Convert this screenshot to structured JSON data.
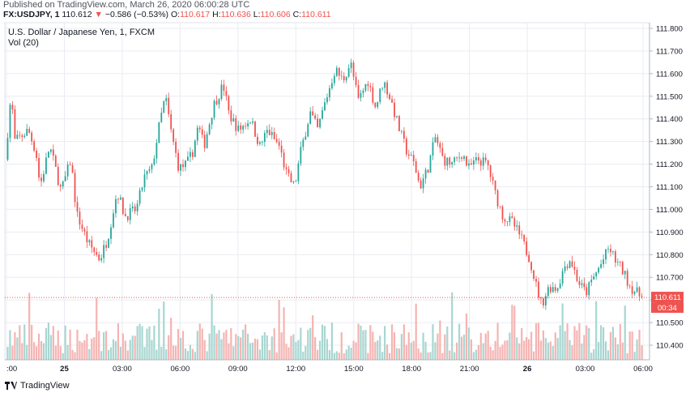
{
  "header": {
    "published": "Published on TradingView.com, March 26, 2020 06:00:28 UTC",
    "symbol": "FX:USDJPY, 1",
    "last": "110.612",
    "arrow": "▼",
    "change": "−0.586 (−0.53%)",
    "o_label": "O:",
    "o_value": "110.617",
    "h_label": "H:",
    "h_value": "110.636",
    "l_label": "L:",
    "l_value": "110.606",
    "c_label": "C:",
    "c_value": "110.611"
  },
  "legend": {
    "title": "U.S. Dollar / Japanese Yen, 1, FXCM",
    "volume": "Vol (20)"
  },
  "price_badge": {
    "price": "110.611",
    "countdown": "00:34"
  },
  "footer": {
    "brand": "TradingView"
  },
  "colors": {
    "up": "#26a69a",
    "down": "#ef5350",
    "grid": "#e9ecf2",
    "vol_up": "#a8d6d1",
    "vol_down": "#f4b4b2"
  },
  "chart_data": {
    "type": "candlestick",
    "title": "U.S. Dollar / Japanese Yen, 1, FXCM",
    "y_ticks": [
      "111.800",
      "111.700",
      "111.600",
      "111.500",
      "111.400",
      "111.300",
      "111.200",
      "111.100",
      "111.000",
      "110.900",
      "110.800",
      "110.700",
      "110.600",
      "110.500",
      "110.400"
    ],
    "ylim": [
      110.33,
      111.83
    ],
    "x_ticks": [
      {
        "label": ":00",
        "t": 0,
        "bold": false
      },
      {
        "label": "25",
        "t": 3,
        "bold": true
      },
      {
        "label": "03:00",
        "t": 6,
        "bold": false
      },
      {
        "label": "06:00",
        "t": 9,
        "bold": false
      },
      {
        "label": "09:00",
        "t": 12,
        "bold": false
      },
      {
        "label": "12:00",
        "t": 15,
        "bold": false
      },
      {
        "label": "15:00",
        "t": 18,
        "bold": false
      },
      {
        "label": "18:00",
        "t": 21,
        "bold": false
      },
      {
        "label": "21:00",
        "t": 24,
        "bold": false
      },
      {
        "label": "26",
        "t": 27,
        "bold": true
      },
      {
        "label": "03:00",
        "t": 30,
        "bold": false
      },
      {
        "label": "06:00",
        "t": 33,
        "bold": false
      }
    ],
    "x_range_hours": [
      0,
      33
    ],
    "last_price": 110.611,
    "price_path": [
      [
        0.0,
        111.22
      ],
      [
        0.3,
        111.51
      ],
      [
        0.5,
        111.3
      ],
      [
        1.2,
        111.35
      ],
      [
        1.6,
        111.25
      ],
      [
        1.8,
        111.1
      ],
      [
        2.3,
        111.28
      ],
      [
        2.9,
        111.08
      ],
      [
        3.4,
        111.22
      ],
      [
        3.7,
        110.98
      ],
      [
        4.3,
        110.85
      ],
      [
        4.9,
        110.78
      ],
      [
        5.3,
        110.87
      ],
      [
        5.8,
        111.08
      ],
      [
        6.2,
        110.97
      ],
      [
        6.8,
        111.0
      ],
      [
        7.2,
        111.14
      ],
      [
        7.6,
        111.18
      ],
      [
        8.0,
        111.38
      ],
      [
        8.3,
        111.5
      ],
      [
        8.6,
        111.34
      ],
      [
        9.0,
        111.18
      ],
      [
        9.4,
        111.2
      ],
      [
        9.7,
        111.25
      ],
      [
        10.0,
        111.37
      ],
      [
        10.3,
        111.28
      ],
      [
        10.8,
        111.46
      ],
      [
        11.3,
        111.55
      ],
      [
        11.6,
        111.42
      ],
      [
        12.1,
        111.35
      ],
      [
        12.7,
        111.4
      ],
      [
        13.2,
        111.28
      ],
      [
        13.6,
        111.35
      ],
      [
        14.2,
        111.28
      ],
      [
        14.6,
        111.15
      ],
      [
        15.0,
        111.1
      ],
      [
        15.3,
        111.25
      ],
      [
        15.8,
        111.43
      ],
      [
        16.2,
        111.35
      ],
      [
        16.5,
        111.45
      ],
      [
        17.1,
        111.62
      ],
      [
        17.5,
        111.57
      ],
      [
        17.9,
        111.65
      ],
      [
        18.3,
        111.48
      ],
      [
        18.8,
        111.57
      ],
      [
        19.2,
        111.45
      ],
      [
        19.6,
        111.57
      ],
      [
        20.0,
        111.48
      ],
      [
        20.4,
        111.36
      ],
      [
        20.8,
        111.26
      ],
      [
        21.2,
        111.2
      ],
      [
        21.5,
        111.1
      ],
      [
        21.9,
        111.18
      ],
      [
        22.3,
        111.32
      ],
      [
        22.7,
        111.22
      ],
      [
        23.2,
        111.2
      ],
      [
        23.7,
        111.25
      ],
      [
        24.0,
        111.18
      ],
      [
        24.5,
        111.22
      ],
      [
        25.0,
        111.2
      ],
      [
        25.4,
        111.07
      ],
      [
        25.8,
        110.97
      ],
      [
        26.3,
        110.94
      ],
      [
        26.7,
        110.88
      ],
      [
        27.2,
        110.78
      ],
      [
        27.5,
        110.67
      ],
      [
        27.8,
        110.58
      ],
      [
        28.2,
        110.66
      ],
      [
        28.6,
        110.65
      ],
      [
        29.0,
        110.75
      ],
      [
        29.3,
        110.78
      ],
      [
        29.7,
        110.68
      ],
      [
        30.1,
        110.63
      ],
      [
        30.5,
        110.7
      ],
      [
        30.9,
        110.76
      ],
      [
        31.3,
        110.83
      ],
      [
        31.6,
        110.78
      ],
      [
        32.0,
        110.73
      ],
      [
        32.4,
        110.66
      ],
      [
        33.0,
        110.61
      ]
    ]
  }
}
